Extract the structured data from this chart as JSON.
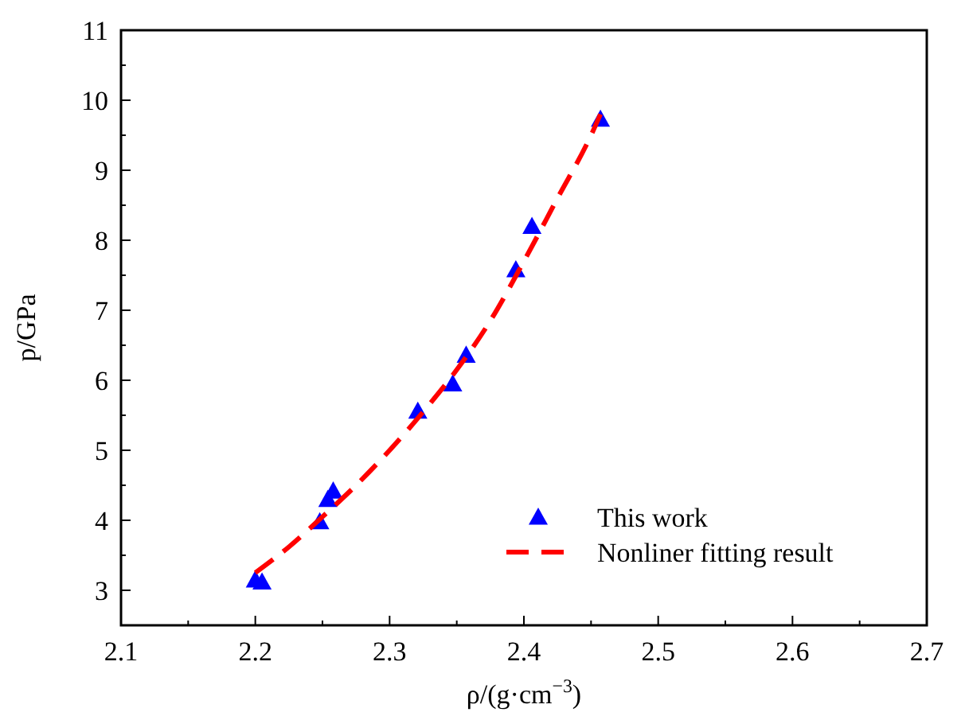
{
  "chart_data": {
    "type": "scatter",
    "xlabel": "ρ/(g·cm$^{−3}$)",
    "ylabel": "p/GPa",
    "xlim": [
      2.1,
      2.7
    ],
    "xticks": [
      2.1,
      {
        "value": 2.15,
        "label": null
      },
      2.2,
      {
        "value": 2.25,
        "label": null
      },
      2.3,
      {
        "value": 2.35,
        "label": null
      },
      2.4,
      {
        "value": 2.45,
        "label": null
      },
      2.5,
      {
        "value": 2.55,
        "label": null
      },
      2.6,
      {
        "value": 2.65,
        "label": null
      },
      2.7
    ],
    "ylim": [
      2.5,
      11
    ],
    "yticks": [
      3,
      {
        "value": 3.5,
        "label": null
      },
      4,
      {
        "value": 4.5,
        "label": null
      },
      5,
      {
        "value": 5.5,
        "label": null
      },
      6,
      {
        "value": 6.5,
        "label": null
      },
      7,
      {
        "value": 7.5,
        "label": null
      },
      8,
      {
        "value": 8.5,
        "label": null
      },
      9,
      {
        "value": 9.5,
        "label": null
      },
      10,
      {
        "value": 10.5,
        "label": null
      },
      11
    ],
    "grid": false,
    "legend": "bottom right",
    "series": [
      {
        "name": "This work",
        "marker": "triangle",
        "color": "#0000ff",
        "x": [
          2.2,
          2.205,
          2.248,
          2.254,
          2.258,
          2.321,
          2.347,
          2.357,
          2.394,
          2.406,
          2.457
        ],
        "values": [
          3.15,
          3.12,
          3.98,
          4.3,
          4.42,
          5.56,
          5.95,
          6.36,
          7.58,
          8.2,
          9.73
        ]
      },
      {
        "name": "Nonliner fitting result",
        "type": "line",
        "marker": "none",
        "line_style": "dashed",
        "color": "#ff0000",
        "x": [
          2.2,
          2.225,
          2.25,
          2.275,
          2.3,
          2.325,
          2.35,
          2.375,
          2.4,
          2.425,
          2.45,
          2.457
        ],
        "values": [
          3.25,
          3.62,
          4.05,
          4.5,
          5.0,
          5.55,
          6.15,
          6.85,
          7.7,
          8.6,
          9.5,
          9.8
        ]
      }
    ]
  }
}
